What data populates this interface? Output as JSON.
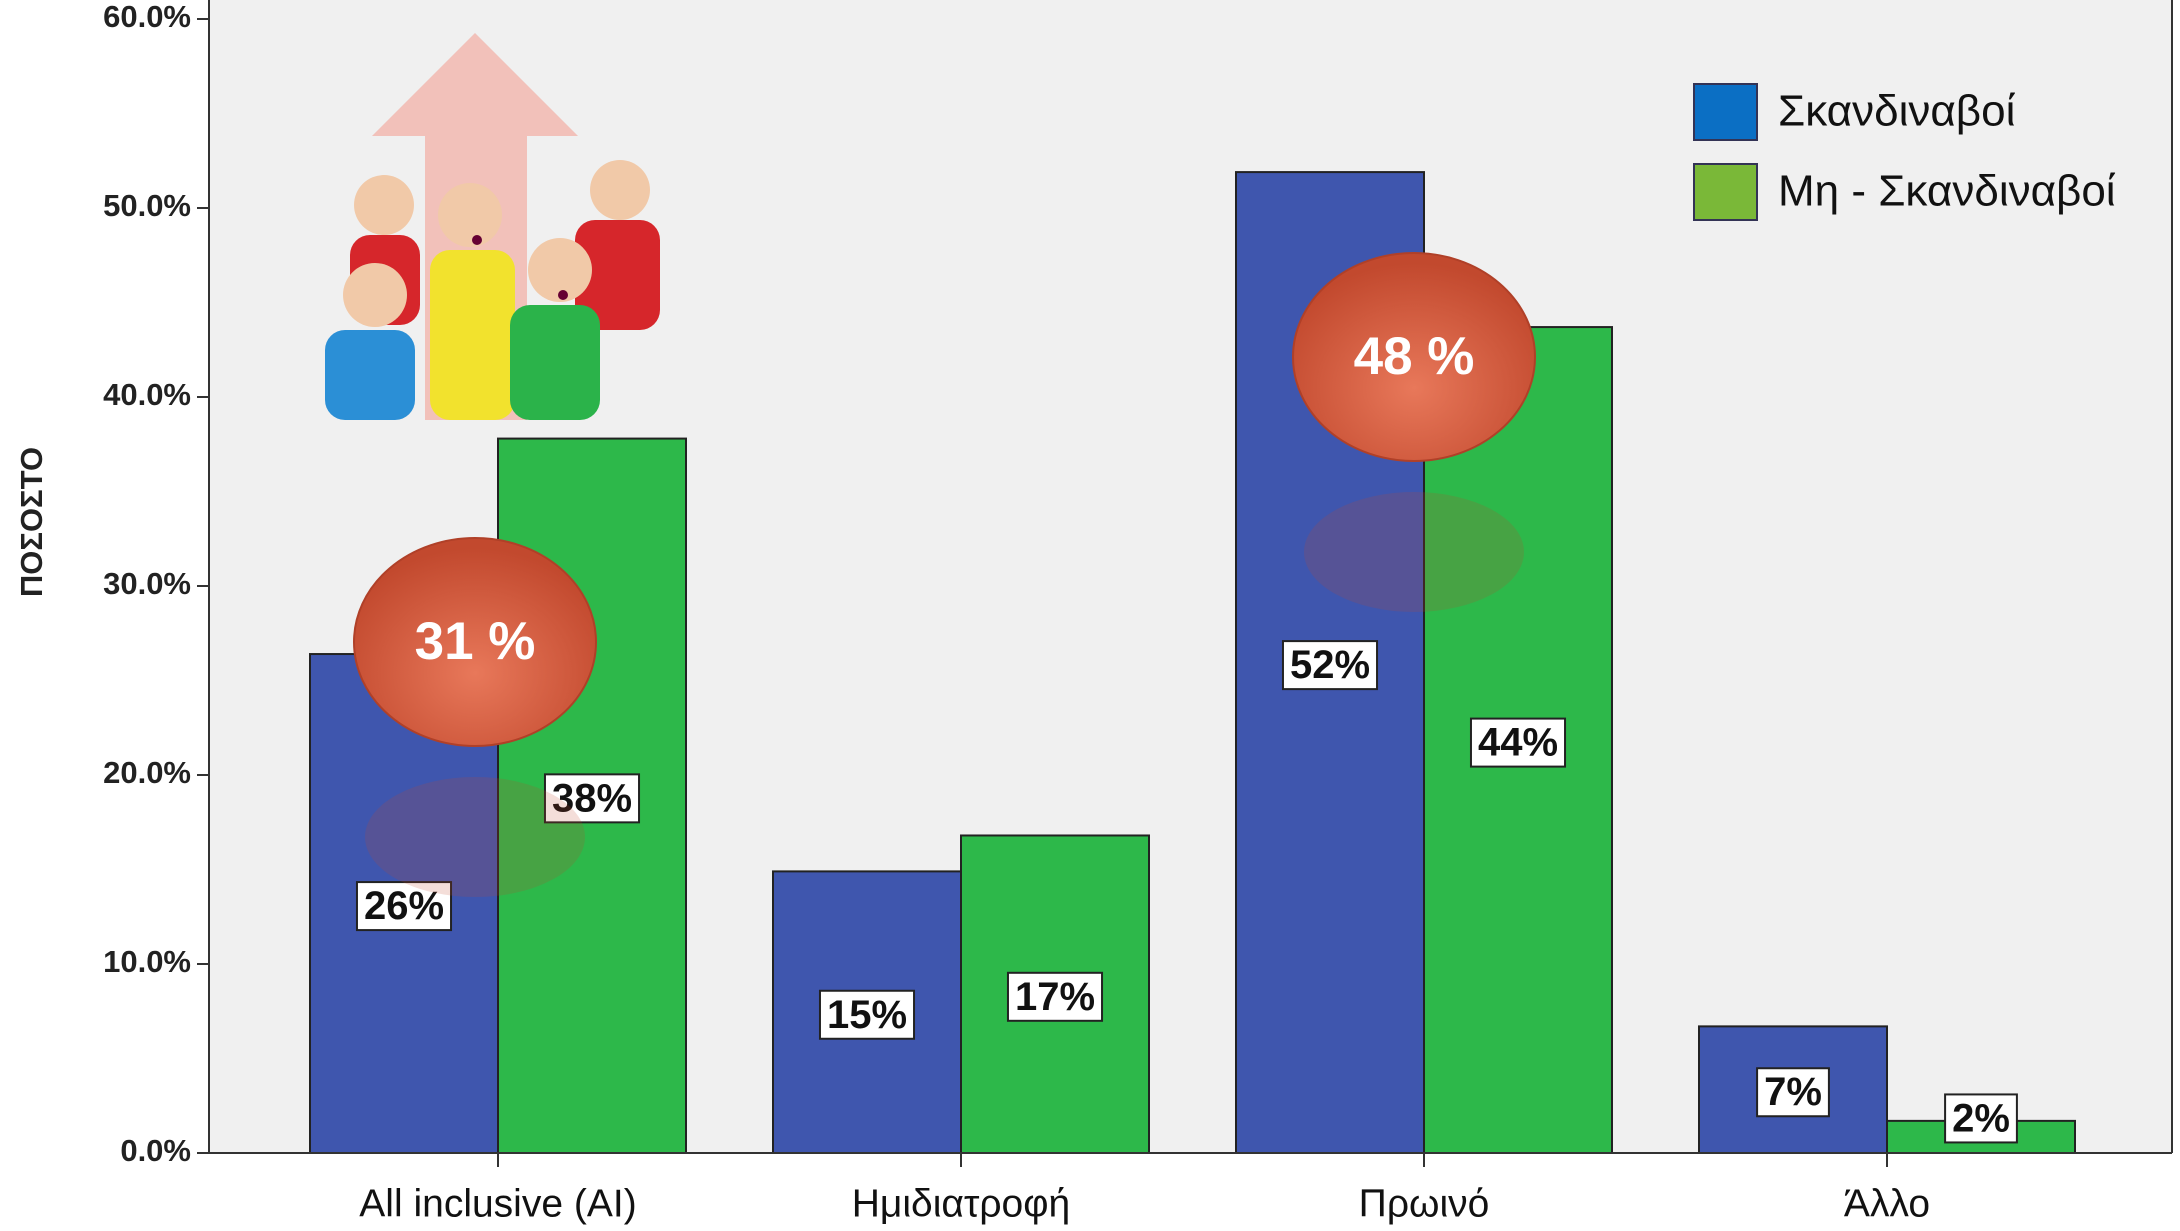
{
  "chart_data": {
    "type": "bar",
    "ylabel": "ΠΟΣΟΣΤΟ",
    "categories": [
      "All inclusive (AI)",
      "Ημιδιατροφή",
      "Πρωινό",
      "Άλλο"
    ],
    "series": [
      {
        "name": "Σκανδιναβοί",
        "color": "#3f56ae",
        "values": [
          26.4,
          14.9,
          51.9,
          6.7
        ],
        "value_labels": [
          "26%",
          "15%",
          "52%",
          "7%"
        ]
      },
      {
        "name": "Μη - Σκανδιναβοί",
        "color": "#2db84a",
        "values": [
          37.8,
          16.8,
          43.7,
          1.7
        ],
        "value_labels": [
          "38%",
          "17%",
          "44%",
          "2%"
        ]
      }
    ],
    "ylim": [
      0,
      60
    ],
    "yticks": [
      {
        "value": 0,
        "label": "0.0%"
      },
      {
        "value": 10,
        "label": "10.0%"
      },
      {
        "value": 20,
        "label": "20.0%"
      },
      {
        "value": 30,
        "label": "30.0%"
      },
      {
        "value": 40,
        "label": "40.0%"
      },
      {
        "value": 50,
        "label": "50.0%"
      },
      {
        "value": 60,
        "label": "60.0%"
      }
    ],
    "legend": "upper right",
    "annotations": [
      "31 %",
      "48 %"
    ]
  }
}
